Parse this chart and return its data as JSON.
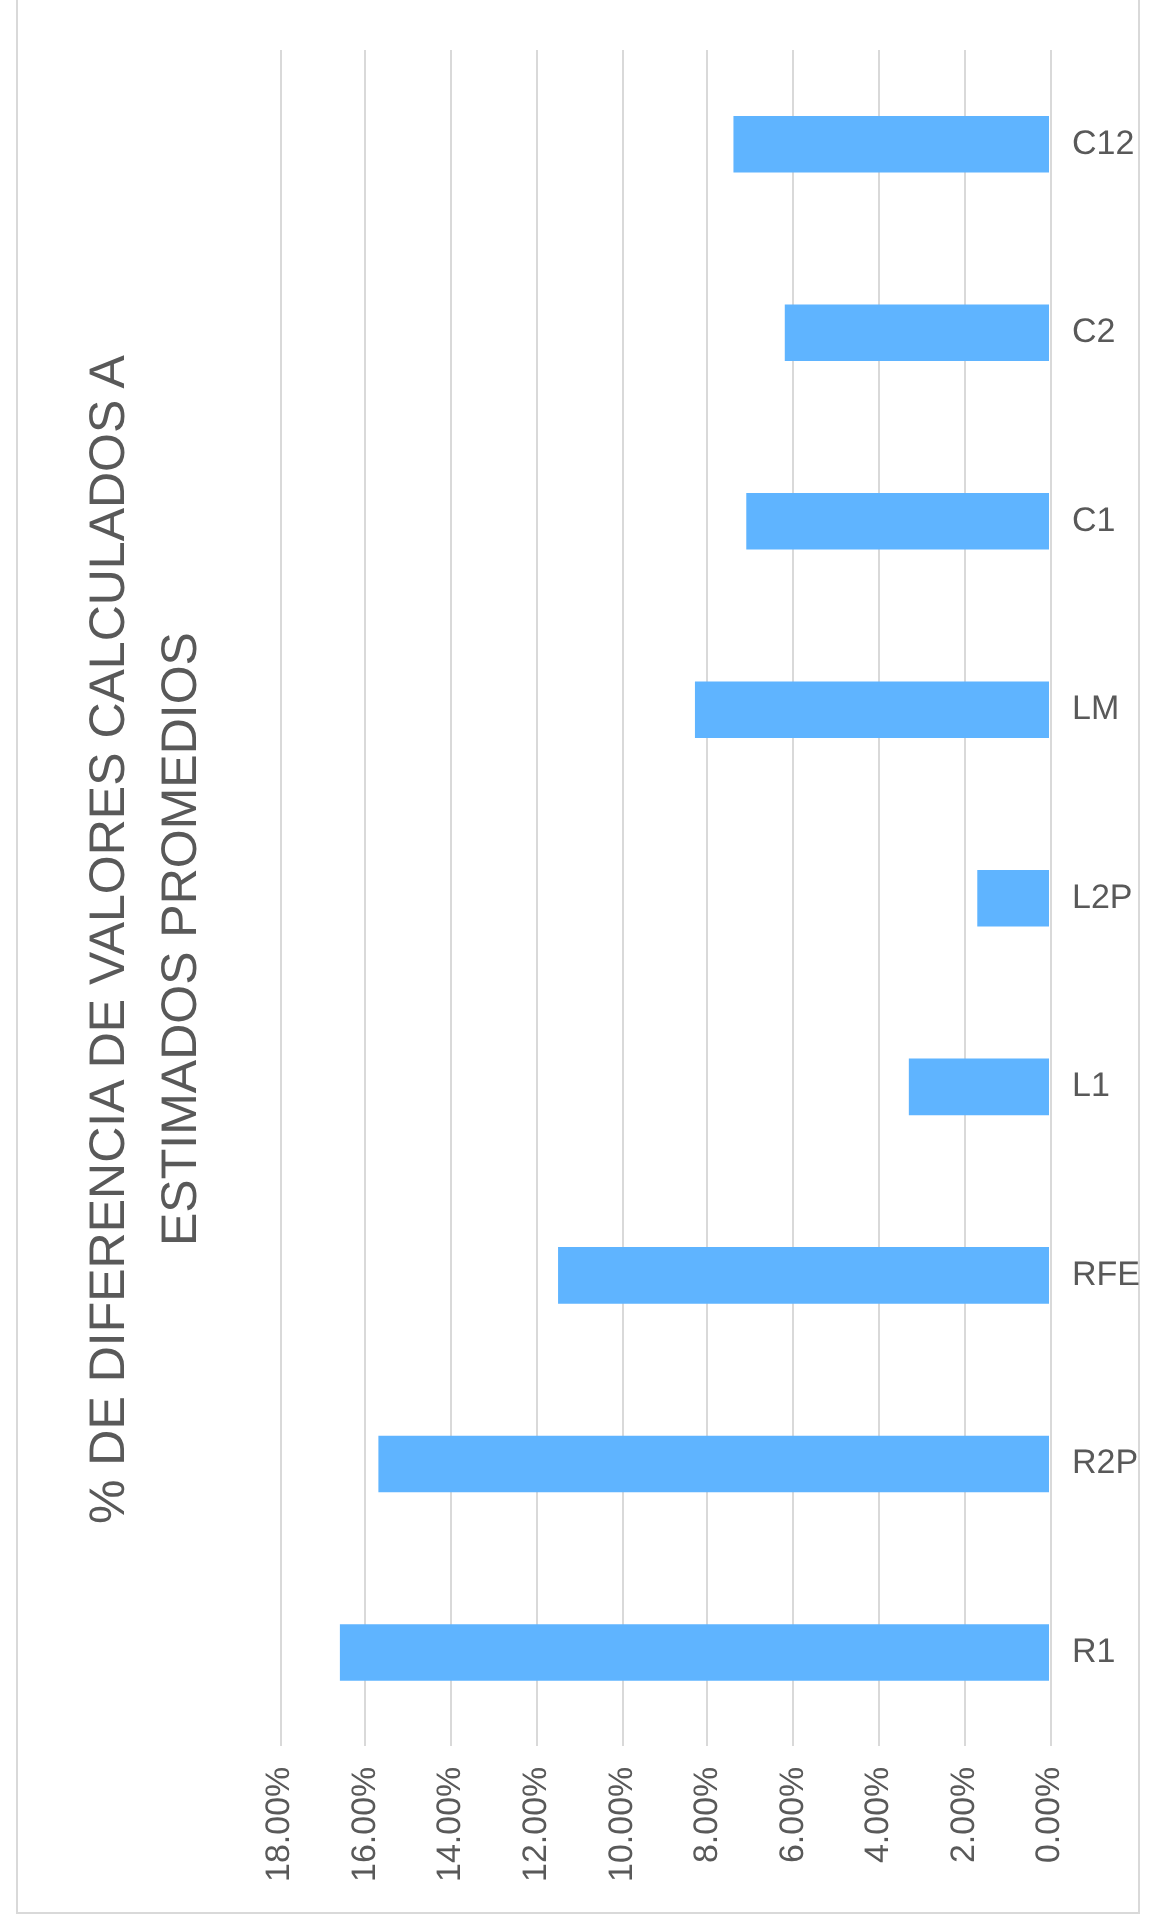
{
  "chart_data": {
    "type": "bar",
    "orientation": "horizontal",
    "title": "% DE DIFERENCIA DE VALORES CALCULADOS A ESTIMADOS  PROMEDIOS",
    "categories": [
      "C12",
      "C2",
      "C1",
      "LM",
      "L2P",
      "L1",
      "RFE",
      "R2P",
      "R1"
    ],
    "values": [
      7.4,
      6.2,
      7.1,
      8.3,
      1.7,
      3.3,
      11.5,
      15.7,
      16.6
    ],
    "color": "#5fb4ff",
    "xlim": [
      18,
      0
    ],
    "xticks": [
      {
        "value": 18,
        "label": "18.00%"
      },
      {
        "value": 16,
        "label": "16.00%"
      },
      {
        "value": 14,
        "label": "14.00%"
      },
      {
        "value": 12,
        "label": "12.00%"
      },
      {
        "value": 10,
        "label": "10.00%"
      },
      {
        "value": 8,
        "label": "8.00%"
      },
      {
        "value": 6,
        "label": "6.00%"
      },
      {
        "value": 4,
        "label": "4.00%"
      },
      {
        "value": 2,
        "label": "2.00%"
      },
      {
        "value": 0,
        "label": "0.00%"
      }
    ],
    "grid": "x"
  }
}
